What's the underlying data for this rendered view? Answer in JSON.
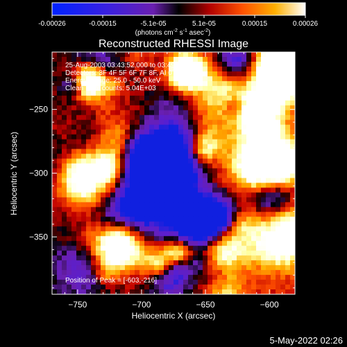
{
  "colorbar": {
    "tick_labels": [
      "-0.00026",
      "-0.00015",
      "-5.1e-05",
      "5.1e-05",
      "0.00015",
      "0.00026"
    ],
    "unit_main": "(photons cm",
    "unit_sup1": "-2",
    "unit_mid": " s",
    "unit_sup2": "-1",
    "unit_mid2": " asec",
    "unit_sup3": "-2",
    "unit_end": ")"
  },
  "plot": {
    "title": "Reconstructed RHESSI Image",
    "info_lines": [
      "25-Aug-2003 03:43:52.000 to 03:49:52.000",
      "Detectors: 3F 4F 5F 6F 7F 8F, AI 0",
      "Energy Range: 25.0 - 50.0 keV",
      "Clean     Total counts: 5.04E+03"
    ],
    "peak_label": "Position of Peak = [-603,-216]"
  },
  "footer": {
    "timestamp": "5-May-2022 02:26"
  },
  "chart_data": {
    "type": "heatmap",
    "title": "Reconstructed RHESSI Image",
    "xlabel": "Heliocentric X (arcsec)",
    "ylabel": "Heliocentric Y (arcsec)",
    "xlim": [
      -770,
      -580
    ],
    "ylim": [
      -395,
      -205
    ],
    "x_ticks": [
      -750,
      -700,
      -650,
      -600
    ],
    "y_ticks": [
      -250,
      -300,
      -350
    ],
    "x_tick_labels": [
      "−750",
      "−700",
      "−650",
      "−600"
    ],
    "y_tick_labels": [
      "−250",
      "−300",
      "−350"
    ],
    "colorbar_range": [
      -0.00026,
      0.00026
    ],
    "peak_position": [
      -603,
      -216
    ],
    "colormap_stops": [
      "#1020e0",
      "#5a1fd0",
      "#6a1fb0",
      "#000000",
      "#c00000",
      "#ff5000",
      "#ffb000",
      "#ffffa0",
      "#ffffff"
    ]
  }
}
